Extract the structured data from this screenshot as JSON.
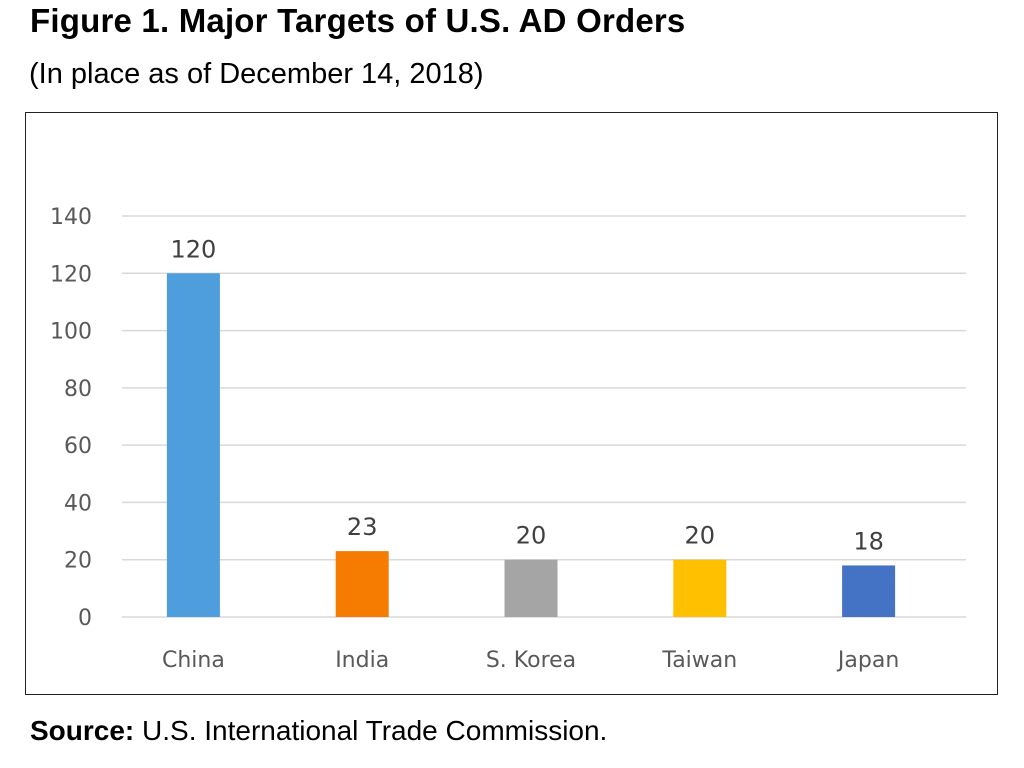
{
  "figure": {
    "title": "Figure 1. Major Targets of U.S. AD Orders",
    "subtitle": "(In place as of December 14, 2018)",
    "source_label": "Source:",
    "source_text": "U.S. International Trade Commission."
  },
  "chart_data": {
    "type": "bar",
    "categories": [
      "China",
      "India",
      "S. Korea",
      "Taiwan",
      "Japan"
    ],
    "values": [
      120,
      23,
      20,
      20,
      18
    ],
    "colors": [
      "#4e9ddc",
      "#f57c00",
      "#a5a5a5",
      "#ffc000",
      "#4472c4"
    ],
    "ylim": [
      0,
      140
    ],
    "yticks": [
      0,
      20,
      40,
      60,
      80,
      100,
      120,
      140
    ],
    "grid": true,
    "legend": "none",
    "data_labels": true
  }
}
